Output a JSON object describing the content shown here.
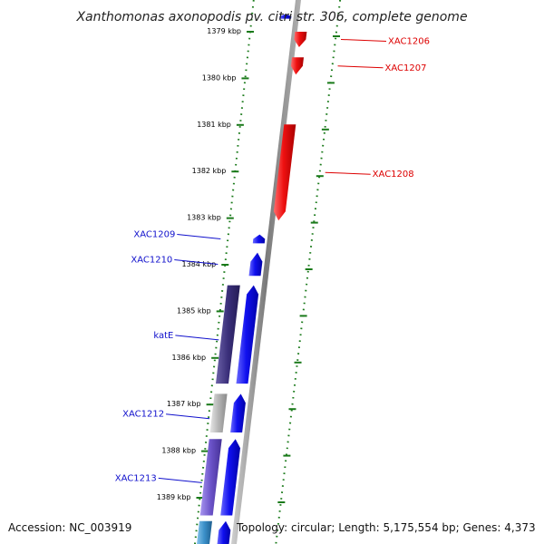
{
  "title": "Xanthomonas axonopodis pv. citri str. 306, complete genome",
  "footer": {
    "accession": "Accession: NC_003919",
    "topology": "Topology: circular; Length: 5,175,554 bp; Genes: 4,373"
  },
  "colors": {
    "forward": "#1010ee",
    "reverse": "#ee1010",
    "label_forward": "#1010cc",
    "label_reverse": "#dd0000",
    "tick": "#1a7a1a",
    "backbone": "#8a8a8a"
  },
  "scale": {
    "ticks": [
      {
        "kbp": 1379,
        "label": "1379 kbp"
      },
      {
        "kbp": 1380,
        "label": "1380 kbp"
      },
      {
        "kbp": 1381,
        "label": "1381 kbp"
      },
      {
        "kbp": 1382,
        "label": "1382 kbp"
      },
      {
        "kbp": 1383,
        "label": "1383 kbp"
      },
      {
        "kbp": 1384,
        "label": "1384 kbp"
      },
      {
        "kbp": 1385,
        "label": "1385 kbp"
      },
      {
        "kbp": 1386,
        "label": "1386 kbp"
      },
      {
        "kbp": 1387,
        "label": "1387 kbp"
      },
      {
        "kbp": 1388,
        "label": "1388 kbp"
      },
      {
        "kbp": 1389,
        "label": "1389 kbp"
      }
    ]
  },
  "genes": [
    {
      "name": "",
      "strand": "forward",
      "color": "#1010ee",
      "start_kbp": 1378.62,
      "end_kbp": 1378.72
    },
    {
      "name": "XAC1206",
      "strand": "reverse",
      "color": "#ee1010",
      "start_kbp": 1379.0,
      "end_kbp": 1379.33
    },
    {
      "name": "XAC1207",
      "strand": "reverse",
      "color": "#ee1010",
      "start_kbp": 1379.55,
      "end_kbp": 1379.92
    },
    {
      "name": "XAC1208",
      "strand": "reverse",
      "color": "#ee1010",
      "start_kbp": 1380.99,
      "end_kbp": 1383.05
    },
    {
      "name": "XAC1209",
      "strand": "forward",
      "color": "#1010ee",
      "start_kbp": 1383.35,
      "end_kbp": 1383.54
    },
    {
      "name": "XAC1210",
      "strand": "forward",
      "color": "#1010ee",
      "start_kbp": 1383.74,
      "end_kbp": 1384.24
    },
    {
      "name": "",
      "strand": "forward",
      "color": "#1010ee",
      "start_kbp": 1384.44,
      "end_kbp": 1386.55
    },
    {
      "name": "katE",
      "strand": "feature",
      "color": "#3a2f7a",
      "start_kbp": 1384.44,
      "end_kbp": 1386.55
    },
    {
      "name": "",
      "strand": "forward",
      "color": "#1010ee",
      "start_kbp": 1386.77,
      "end_kbp": 1387.6
    },
    {
      "name": "XAC1212",
      "strand": "feature",
      "color": "#b4b4b4",
      "start_kbp": 1386.77,
      "end_kbp": 1387.6
    },
    {
      "name": "",
      "strand": "forward",
      "color": "#1010ee",
      "start_kbp": 1387.74,
      "end_kbp": 1389.38
    },
    {
      "name": "XAC1213",
      "strand": "feature",
      "color": "#6a52c8",
      "start_kbp": 1387.74,
      "end_kbp": 1389.38
    },
    {
      "name": "",
      "strand": "forward",
      "color": "#1010ee",
      "start_kbp": 1389.5,
      "end_kbp": 1390.0
    },
    {
      "name": "",
      "strand": "feature",
      "color": "#3a8fc8",
      "start_kbp": 1389.5,
      "end_kbp": 1390.0
    }
  ]
}
